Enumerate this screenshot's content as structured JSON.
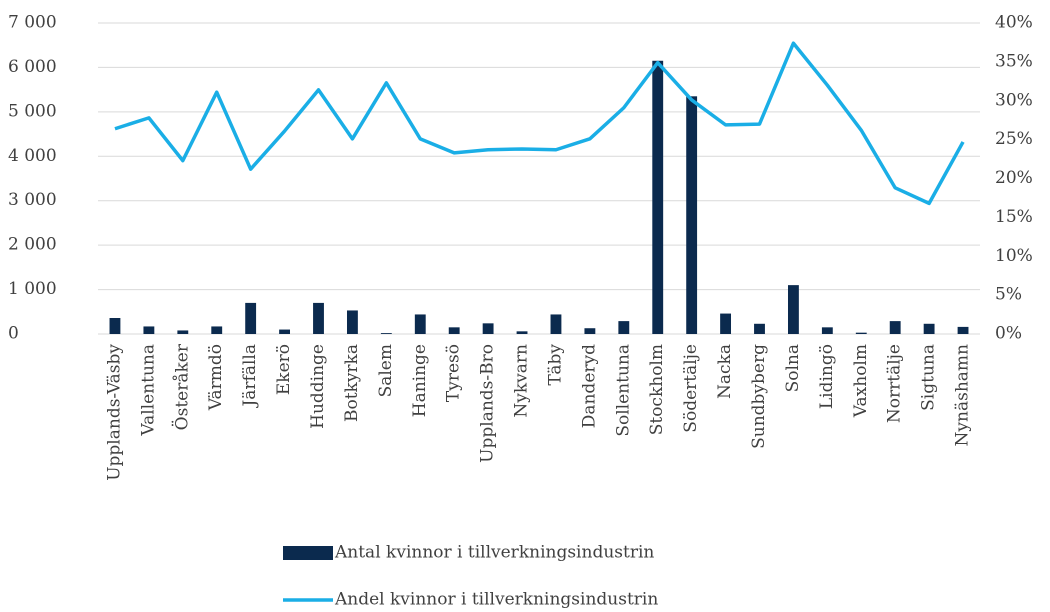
{
  "chart_data": {
    "type": "bar-line",
    "categories": [
      "Upplands-Väsby",
      "Vallentuna",
      "Österåker",
      "Värmdö",
      "Järfälla",
      "Ekerö",
      "Huddinge",
      "Botkyrka",
      "Salem",
      "Haninge",
      "Tyresö",
      "Upplands-Bro",
      "Nykvarn",
      "Täby",
      "Danderyd",
      "Sollentuna",
      "Stockholm",
      "Södertälje",
      "Nacka",
      "Sundbyberg",
      "Solna",
      "Lidingö",
      "Vaxholm",
      "Norrtälje",
      "Sigtuna",
      "Nynäshamn"
    ],
    "series": [
      {
        "name": "Antal kvinnor i tillverkningsindustrin",
        "color": "#0b2a4e",
        "type": "bar",
        "values": [
          360,
          170,
          80,
          170,
          700,
          100,
          700,
          530,
          20,
          440,
          150,
          240,
          60,
          440,
          130,
          290,
          6150,
          5350,
          460,
          230,
          1100,
          150,
          30,
          290,
          230,
          160
        ]
      },
      {
        "name": "Andel kvinnor i tillverkningsindustrin",
        "color": "#1aaee6",
        "type": "line",
        "axis": "y2",
        "values": [
          26.4,
          27.8,
          22.3,
          31.1,
          21.2,
          26.1,
          31.4,
          25.1,
          32.3,
          25.1,
          23.3,
          23.7,
          23.8,
          23.7,
          25.1,
          29.1,
          34.9,
          30.1,
          26.9,
          27.0,
          37.4,
          32.0,
          26.2,
          18.8,
          16.8,
          24.7
        ]
      }
    ],
    "ylim": [
      0,
      7000
    ],
    "yticks": [
      0,
      {
        "value": 1000,
        "label": "1 000"
      },
      {
        "value": 2000,
        "label": "2 000"
      },
      {
        "value": 3000,
        "label": "3 000"
      },
      {
        "value": 4000,
        "label": "4 000"
      },
      {
        "value": 5000,
        "label": "5 000"
      },
      {
        "value": 6000,
        "label": "6 000"
      },
      {
        "value": 7000,
        "label": "7 000"
      }
    ],
    "y2lim": [
      0,
      40
    ],
    "y2ticks": [
      {
        "value": 0,
        "label": "0%"
      },
      {
        "value": 5,
        "label": "5%"
      },
      {
        "value": 10,
        "label": "10%"
      },
      {
        "value": 15,
        "label": "15%"
      },
      {
        "value": 20,
        "label": "20%"
      },
      {
        "value": 25,
        "label": "25%"
      },
      {
        "value": 30,
        "label": "30%"
      },
      {
        "value": 35,
        "label": "35%"
      },
      {
        "value": 40,
        "label": "40%"
      }
    ],
    "grid": true
  }
}
